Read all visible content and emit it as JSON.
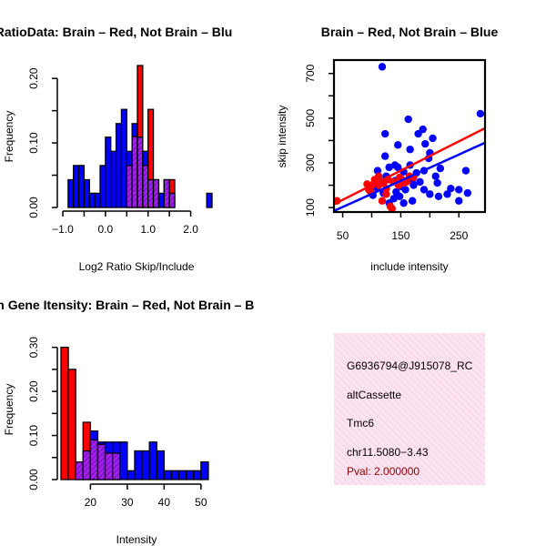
{
  "colors": {
    "red": "#ff0000",
    "blue": "#0000ff",
    "overlap": "#a020f0",
    "pval": "#8b0000",
    "panel_bg": "#fde4f1"
  },
  "chart_data": [
    {
      "type": "bar",
      "id": "ratio_hist",
      "title": "RatioData: Brain – Red, Not Brain – Blu",
      "xlabel": "Log2 Ratio Skip/Include",
      "ylabel": "Frequency",
      "xlim": [
        -1.0,
        2.5
      ],
      "ylim": [
        0,
        0.22
      ],
      "x_ticks": [
        -1.0,
        -0.5,
        0.0,
        0.5,
        1.0,
        1.5,
        2.0
      ],
      "x_tick_labels": [
        "−1.0",
        "",
        "0.0",
        "",
        "1.0",
        "",
        "2.0"
      ],
      "y_ticks": [
        0.0,
        0.05,
        0.1,
        0.15,
        0.2
      ],
      "y_tick_labels": [
        "0.00",
        "",
        "0.10",
        "",
        "0.20"
      ],
      "bin_width": 0.125,
      "bin_starts": [
        -0.875,
        -0.75,
        -0.625,
        -0.5,
        -0.375,
        -0.25,
        -0.125,
        0.0,
        0.125,
        0.25,
        0.375,
        0.5,
        0.625,
        0.75,
        0.875,
        1.0,
        1.125,
        1.25,
        1.375,
        1.5,
        1.625,
        1.75,
        1.875,
        2.0,
        2.125,
        2.25,
        2.375,
        2.5
      ],
      "series": [
        {
          "name": "Brain",
          "color": "red",
          "values": [
            0,
            0,
            0,
            0,
            0,
            0,
            0,
            0,
            0,
            0,
            0,
            0.065,
            0.11,
            0.22,
            0.065,
            0.152,
            0.043,
            0,
            0.043,
            0.043,
            0,
            0,
            0,
            0,
            0,
            0,
            0,
            0
          ]
        },
        {
          "name": "Not Brain",
          "color": "blue",
          "values": [
            0.043,
            0.065,
            0.065,
            0.043,
            0.022,
            0.022,
            0.065,
            0.109,
            0.087,
            0.13,
            0.152,
            0.087,
            0.13,
            0.109,
            0.087,
            0.043,
            0.043,
            0.022,
            0.043,
            0.022,
            0,
            0,
            0,
            0,
            0,
            0,
            0.022,
            0
          ]
        }
      ]
    },
    {
      "type": "scatter",
      "id": "intensity_scatter",
      "title": "Brain – Red, Not Brain – Blue",
      "xlabel": "include intensity",
      "ylabel": "skip intensity",
      "xlim": [
        35,
        295
      ],
      "ylim": [
        80,
        760
      ],
      "x_ticks": [
        50,
        100,
        150,
        200,
        250
      ],
      "x_tick_labels": [
        "50",
        "",
        "150",
        "",
        "250"
      ],
      "y_ticks": [
        100,
        200,
        300,
        400,
        500,
        600,
        700
      ],
      "y_tick_labels": [
        "100",
        "",
        "300",
        "",
        "500",
        "",
        "700"
      ],
      "series": [
        {
          "name": "Not Brain",
          "color": "blue",
          "points": [
            [
              118,
              730
            ],
            [
              287,
              520
            ],
            [
              163,
              495
            ],
            [
              188,
              450
            ],
            [
              180,
              430
            ],
            [
              123,
              430
            ],
            [
              205,
              410
            ],
            [
              192,
              385
            ],
            [
              145,
              380
            ],
            [
              166,
              360
            ],
            [
              200,
              345
            ],
            [
              123,
              330
            ],
            [
              198,
              320
            ],
            [
              140,
              290
            ],
            [
              166,
              290
            ],
            [
              145,
              280
            ],
            [
              130,
              280
            ],
            [
              218,
              275
            ],
            [
              262,
              265
            ],
            [
              110,
              265
            ],
            [
              190,
              265
            ],
            [
              155,
              260
            ],
            [
              177,
              255
            ],
            [
              210,
              240
            ],
            [
              125,
              240
            ],
            [
              170,
              225
            ],
            [
              140,
              220
            ],
            [
              118,
              215
            ],
            [
              183,
              215
            ],
            [
              213,
              210
            ],
            [
              172,
              200
            ],
            [
              150,
              195
            ],
            [
              108,
              190
            ],
            [
              236,
              185
            ],
            [
              250,
              180
            ],
            [
              158,
              180
            ],
            [
              190,
              180
            ],
            [
              142,
              170
            ],
            [
              120,
              165
            ],
            [
              265,
              165
            ],
            [
              230,
              160
            ],
            [
              200,
              160
            ],
            [
              102,
              155
            ],
            [
              215,
              150
            ],
            [
              148,
              150
            ],
            [
              138,
              140
            ],
            [
              170,
              130
            ],
            [
              250,
              130
            ],
            [
              130,
              120
            ],
            [
              155,
              120
            ]
          ]
        },
        {
          "name": "Brain",
          "color": "red",
          "points": [
            [
              40,
              130
            ],
            [
              92,
              205
            ],
            [
              100,
              200
            ],
            [
              112,
              240
            ],
            [
              95,
              180
            ],
            [
              120,
              210
            ],
            [
              128,
              225
            ],
            [
              135,
              95
            ],
            [
              143,
              215
            ],
            [
              148,
              235
            ],
            [
              152,
              225
            ],
            [
              155,
              210
            ],
            [
              165,
              240
            ],
            [
              172,
              235
            ],
            [
              118,
              130
            ],
            [
              125,
              160
            ],
            [
              132,
              105
            ],
            [
              105,
              225
            ],
            [
              98,
              170
            ],
            [
              112,
              200
            ],
            [
              160,
              215
            ],
            [
              146,
              200
            ],
            [
              125,
              185
            ],
            [
              137,
              215
            ]
          ]
        }
      ],
      "fit_lines": [
        {
          "name": "Brain",
          "color": "red",
          "from": [
            35,
            115
          ],
          "to": [
            295,
            455
          ]
        },
        {
          "name": "Not Brain",
          "color": "blue",
          "from": [
            35,
            85
          ],
          "to": [
            295,
            390
          ]
        }
      ]
    },
    {
      "type": "bar",
      "id": "intensity_hist",
      "title": "Exon Gene Itensity: Brain – Red, Not Brain – B",
      "xlabel": "Intensity",
      "ylabel": "Frequency",
      "xlim": [
        12,
        53
      ],
      "ylim": [
        0,
        0.32
      ],
      "x_ticks": [
        20,
        30,
        40,
        50
      ],
      "x_tick_labels": [
        "20",
        "30",
        "40",
        "50"
      ],
      "y_ticks": [
        0.0,
        0.05,
        0.1,
        0.15,
        0.2,
        0.25,
        0.3
      ],
      "y_tick_labels": [
        "0.00",
        "",
        "0.10",
        "",
        "0.20",
        "",
        "0.30"
      ],
      "bin_width": 2,
      "bin_starts": [
        12,
        14,
        16,
        18,
        20,
        22,
        24,
        26,
        28,
        30,
        32,
        34,
        36,
        38,
        40,
        42,
        44,
        46,
        48,
        50
      ],
      "series": [
        {
          "name": "Brain",
          "color": "red",
          "values": [
            0.3,
            0.25,
            0.04,
            0.13,
            0.09,
            0.08,
            0.06,
            0.06,
            0,
            0,
            0,
            0,
            0,
            0,
            0,
            0,
            0,
            0,
            0,
            0
          ]
        },
        {
          "name": "Not Brain",
          "color": "blue",
          "values": [
            0,
            0,
            0.04,
            0.065,
            0.11,
            0.085,
            0.085,
            0.085,
            0.085,
            0.02,
            0.065,
            0.065,
            0.085,
            0.065,
            0.02,
            0.02,
            0.02,
            0.02,
            0.02,
            0.04
          ]
        }
      ]
    }
  ],
  "info_panel": {
    "line1": "G6936794@J915078_RC",
    "line2": "altCassette",
    "line3": "Tmc6",
    "line4": "chr11.5080−3.43",
    "pval": "Pval: 2.000000"
  }
}
